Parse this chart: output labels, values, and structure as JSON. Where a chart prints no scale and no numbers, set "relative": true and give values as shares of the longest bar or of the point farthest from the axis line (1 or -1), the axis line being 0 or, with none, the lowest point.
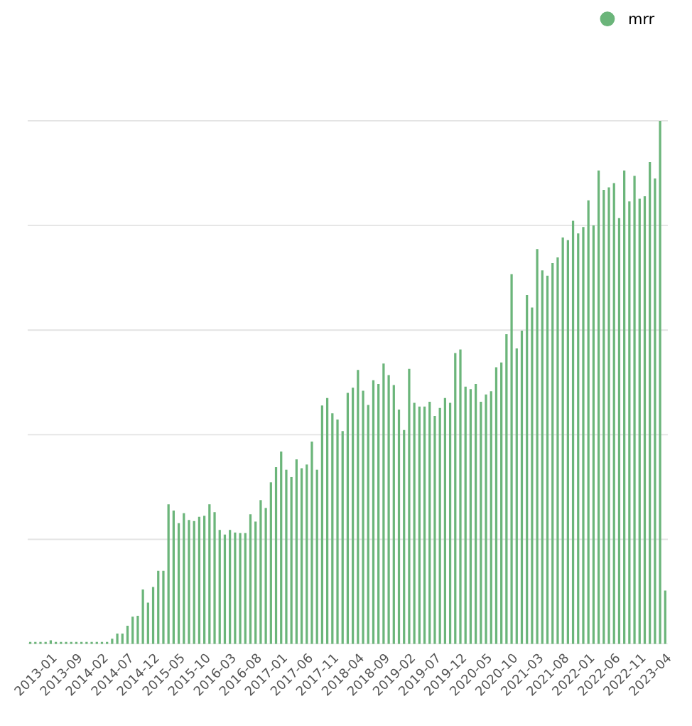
{
  "chart_data": {
    "type": "bar",
    "relative": true,
    "grid": "y",
    "legend": "top right",
    "categories": [
      null,
      null,
      null,
      null,
      "2013-01",
      null,
      null,
      null,
      null,
      "2013-09",
      null,
      null,
      null,
      null,
      "2014-02",
      null,
      null,
      null,
      null,
      "2014-07",
      null,
      null,
      null,
      null,
      "2014-12",
      null,
      null,
      null,
      null,
      "2015-05",
      null,
      null,
      null,
      null,
      "2015-10",
      null,
      null,
      null,
      null,
      "2016-03",
      null,
      null,
      null,
      null,
      "2016-08",
      null,
      null,
      null,
      null,
      "2017-01",
      null,
      null,
      null,
      null,
      "2017-06",
      null,
      null,
      null,
      null,
      "2017-11",
      null,
      null,
      null,
      null,
      "2018-04",
      null,
      null,
      null,
      null,
      "2018-09",
      null,
      null,
      null,
      null,
      "2019-02",
      null,
      null,
      null,
      null,
      "2019-07",
      null,
      null,
      null,
      null,
      "2019-12",
      null,
      null,
      null,
      null,
      "2020-05",
      null,
      null,
      null,
      null,
      "2020-10",
      null,
      null,
      null,
      null,
      "2021-03",
      null,
      null,
      null,
      null,
      "2021-08",
      null,
      null,
      null,
      null,
      "2022-01",
      null,
      null,
      null,
      null,
      "2022-06",
      null,
      null,
      null,
      null,
      "2022-11",
      null,
      null,
      null,
      null,
      "2023-04"
    ],
    "series": [
      {
        "name": "mrr",
        "color": "#6bb57a",
        "values": [
          0.004,
          0.004,
          0.004,
          0.004,
          0.007,
          0.004,
          0.004,
          0.004,
          0.004,
          0.004,
          0.004,
          0.004,
          0.004,
          0.004,
          0.004,
          0.004,
          0.01,
          0.02,
          0.02,
          0.035,
          0.052,
          0.054,
          0.104,
          0.079,
          0.109,
          0.14,
          0.14,
          0.267,
          0.255,
          0.231,
          0.25,
          0.237,
          0.235,
          0.243,
          0.245,
          0.267,
          0.252,
          0.218,
          0.209,
          0.218,
          0.213,
          0.212,
          0.212,
          0.248,
          0.234,
          0.275,
          0.26,
          0.309,
          0.338,
          0.368,
          0.333,
          0.319,
          0.353,
          0.336,
          0.343,
          0.387,
          0.333,
          0.456,
          0.47,
          0.441,
          0.429,
          0.407,
          0.48,
          0.49,
          0.524,
          0.484,
          0.457,
          0.504,
          0.497,
          0.536,
          0.514,
          0.495,
          0.448,
          0.409,
          0.526,
          0.461,
          0.454,
          0.454,
          0.463,
          0.436,
          0.451,
          0.47,
          0.461,
          0.556,
          0.563,
          0.492,
          0.487,
          0.497,
          0.463,
          0.477,
          0.483,
          0.529,
          0.538,
          0.592,
          0.707,
          0.565,
          0.599,
          0.667,
          0.643,
          0.755,
          0.714,
          0.704,
          0.728,
          0.739,
          0.777,
          0.772,
          0.809,
          0.785,
          0.797,
          0.848,
          0.8,
          0.905,
          0.868,
          0.873,
          0.881,
          0.814,
          0.905,
          0.846,
          0.895,
          0.851,
          0.856,
          0.921,
          0.89,
          1.0,
          0.102
        ]
      }
    ]
  }
}
